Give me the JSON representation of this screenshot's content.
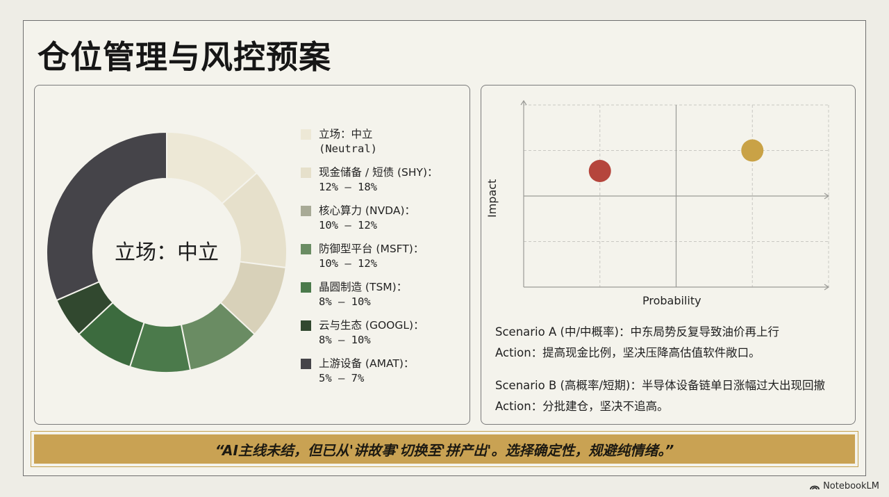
{
  "title": "仓位管理与风控预案",
  "donut": {
    "center_label": "立场：中立",
    "legend": [
      {
        "line1": "立场：中立",
        "line2": "(Neutral)",
        "color": "#ede8d6"
      },
      {
        "line1": "现金储备 / 短债 (SHY)：",
        "line2": "12% – 18%",
        "color": "#e6e0cb"
      },
      {
        "line1": "核心算力 (NVDA)：",
        "line2": "10% – 12%",
        "color": "#a8aa96"
      },
      {
        "line1": "防御型平台 (MSFT)：",
        "line2": "10% – 12%",
        "color": "#6a8c63"
      },
      {
        "line1": "晶圆制造 (TSM)：",
        "line2": "8% – 10%",
        "color": "#4b7a4b"
      },
      {
        "line1": "云与生态 (GOOGL)：",
        "line2": "8% – 10%",
        "color": "#31482f"
      },
      {
        "line1": "上游设备 (AMAT)：",
        "line2": "5% – 7%",
        "color": "#454449"
      }
    ]
  },
  "chart_data": [
    {
      "type": "pie",
      "categories": [
        "立场：中立 (Neutral)",
        "现金储备 / 短债 (SHY)",
        "核心算力 (NVDA)",
        "防御型平台 (MSFT)",
        "晶圆制造 (TSM)",
        "云与生态 (GOOGL)",
        "上游设备 (AMAT)"
      ],
      "values": [
        15,
        15,
        11,
        11,
        9,
        9,
        6
      ],
      "colors": [
        "#ede8d6",
        "#e6e0cb",
        "#d8d1b9",
        "#6a8c63",
        "#4b7a4b",
        "#3c6b3e",
        "#31482f"
      ],
      "tail": {
        "value": 35,
        "color": "#454449"
      },
      "center_label": "立场：中立"
    },
    {
      "type": "scatter",
      "xlabel": "Probability",
      "ylabel": "Impact",
      "xlim": [
        0,
        4
      ],
      "ylim": [
        0,
        4
      ],
      "grid": true,
      "points": [
        {
          "x": 1.0,
          "y": 2.55,
          "color": "#b5453c"
        },
        {
          "x": 3.0,
          "y": 3.0,
          "color": "#c9a246"
        }
      ]
    }
  ],
  "scenarios": [
    {
      "scenario": "Scenario A (中/中概率)：中东局势反复导致油价再上行",
      "action": "Action：提高现金比例，坚决压降高估值软件敞口。"
    },
    {
      "scenario": "Scenario B (高概率/短期)：半导体设备链单日涨幅过大出现回撤",
      "action": "Action：分批建仓，坚决不追高。"
    }
  ],
  "quote": "“AI主线未结，但已从'讲故事'切换至'拼产出'。选择确定性，规避纯情绪。”",
  "brand": "NotebookLM"
}
